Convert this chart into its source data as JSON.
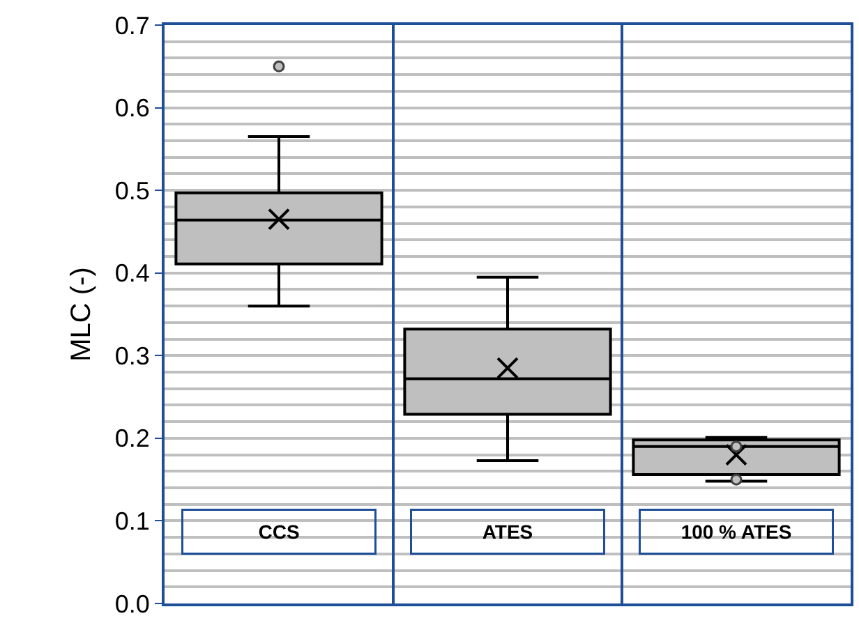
{
  "chart_data": {
    "type": "box",
    "ylabel": "MLC (-)",
    "categories": [
      "CCS",
      "ATES",
      "100 % ATES"
    ],
    "boxes": [
      {
        "low": 0.36,
        "q1": 0.411,
        "median": 0.464,
        "q3": 0.497,
        "high": 0.565,
        "mean": 0.465,
        "outliers": [
          0.65
        ]
      },
      {
        "low": 0.173,
        "q1": 0.229,
        "median": 0.272,
        "q3": 0.332,
        "high": 0.395,
        "mean": 0.285
      },
      {
        "low": 0.148,
        "q1": 0.156,
        "median": 0.19,
        "q3": 0.198,
        "high": 0.201,
        "mean": 0.18,
        "outliers": [
          0.19,
          0.15
        ]
      }
    ],
    "color": "#bfbfbf",
    "ylim": [
      0.0,
      0.7
    ],
    "yticks": [
      {
        "value": 0.0,
        "label": "0.0"
      },
      0.1,
      0.2,
      0.3,
      0.4,
      0.5,
      0.6,
      0.7
    ],
    "grid": "y"
  }
}
